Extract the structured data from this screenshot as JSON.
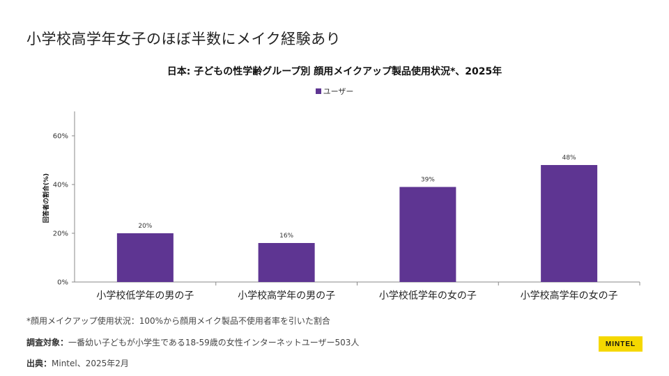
{
  "headline": "小学校高学年女子のほぼ半数にメイク経験あり",
  "chart_data": {
    "type": "bar",
    "title": "日本: 子どもの性学齢グループ別 顔用メイクアップ製品使用状況*、2025年",
    "categories": [
      "小学校低学年の男の子",
      "小学校高学年の男の子",
      "小学校低学年の女の子",
      "小学校高学年の女の子"
    ],
    "series": [
      {
        "name": "ユーザー",
        "values": [
          20,
          16,
          39,
          48
        ],
        "labels": [
          "20%",
          "16%",
          "39%",
          "48%"
        ]
      }
    ],
    "ylabel": "回答者の割合(%)",
    "ylim": [
      0,
      70
    ],
    "yticks": [
      0,
      20,
      40,
      60
    ],
    "ytick_labels": [
      "0%",
      "20%",
      "40%",
      "60%"
    ],
    "grid": false,
    "legend": "top-center",
    "bar_color": "#5e3592"
  },
  "footer": {
    "footnote": "*顔用メイクアップ使用状況：100%から顔用メイク製品不使用者率を引いた割合",
    "survey_label": "調査対象：",
    "survey_text": "一番幼い子どもが小学生である18-59歳の女性インターネットユーザー503人",
    "source_label": "出典：",
    "source_text": "Mintel、2025年2月"
  },
  "logo": {
    "text": "MINTEL",
    "color": "#f5d800"
  }
}
